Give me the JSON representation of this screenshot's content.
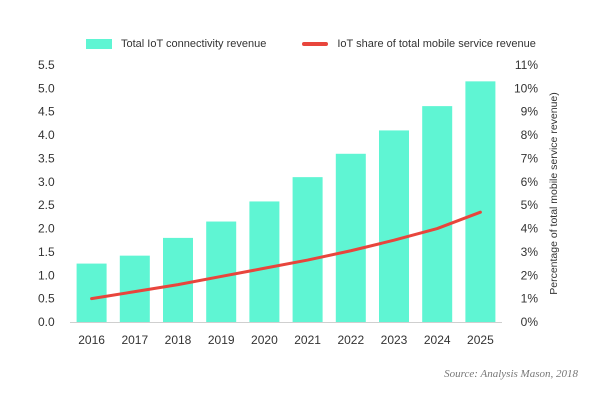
{
  "chart_data": {
    "type": "bar",
    "categories": [
      "2016",
      "2017",
      "2018",
      "2019",
      "2020",
      "2021",
      "2022",
      "2023",
      "2024",
      "2025"
    ],
    "series": [
      {
        "name": "Total IoT connectivity revenue",
        "type": "bar",
        "axis": "left",
        "values": [
          1.25,
          1.42,
          1.8,
          2.15,
          2.58,
          3.1,
          3.6,
          4.1,
          4.62,
          5.15
        ]
      },
      {
        "name": "IoT share of total mobile service revenue",
        "type": "line",
        "axis": "right",
        "values": [
          1.0,
          1.3,
          1.6,
          1.95,
          2.3,
          2.65,
          3.05,
          3.5,
          4.0,
          4.7
        ]
      }
    ],
    "y_left": {
      "min": 0,
      "max": 5.5,
      "step": 0.5,
      "ticks": [
        "0.0",
        "0.5",
        "1.0",
        "1.5",
        "2.0",
        "2.5",
        "3.0",
        "3.5",
        "4.0",
        "4.5",
        "5.0",
        "5.5"
      ],
      "label": ""
    },
    "y_right": {
      "min": 0,
      "max": 11,
      "step": 1,
      "ticks": [
        "0%",
        "1%",
        "2%",
        "3%",
        "4%",
        "5%",
        "6%",
        "7%",
        "8%",
        "9%",
        "10%",
        "11%"
      ],
      "label": "Percentage of total mobile service revenue)"
    },
    "xlabel": "",
    "grid": false
  },
  "colors": {
    "bar": "#5ff5d3",
    "line": "#e8453c",
    "text": "#333333",
    "axis": "#cfcfcf"
  },
  "legend": {
    "bar_label": "Total IoT connectivity revenue",
    "line_label": "IoT share of total mobile service revenue"
  },
  "source": "Source: Analysis Mason, 2018"
}
